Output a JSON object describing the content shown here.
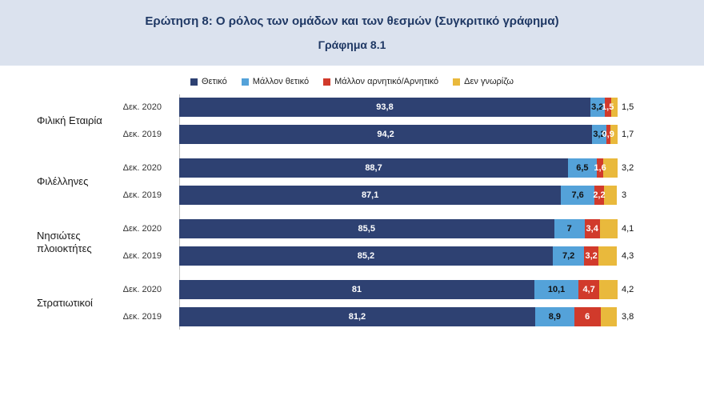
{
  "header": {
    "title": "Ερώτηση 8: Ο ρόλος των ομάδων και των θεσμών (Συγκριτικό γράφημα)",
    "subtitle": "Γράφημα 8.1"
  },
  "colors": {
    "positive": "#2e4172",
    "rather_positive": "#54a2d9",
    "negative": "#d13a2b",
    "dont_know": "#e9b93c",
    "header_bg": "#dbe2ee",
    "title_text": "#1f3864",
    "axis_line": "#bfbfbf"
  },
  "chart_data": {
    "type": "bar",
    "orientation": "horizontal-stacked",
    "title": "Γράφημα 8.1",
    "xlim": [
      0,
      100
    ],
    "legend_position": "top-center",
    "legend": [
      "Θετικό",
      "Μάλλον θετικό",
      "Μάλλον αρνητικό/Αρνητικό",
      "Δεν γνωρίζω"
    ],
    "series_keys": [
      "positive",
      "rather_positive",
      "negative",
      "dont_know"
    ],
    "groups": [
      {
        "label": "Φιλική Εταιρία",
        "rows": [
          {
            "label": "Δεκ. 2020",
            "values": [
              93.8,
              3.2,
              1.5,
              1.5
            ],
            "display": [
              "93,8",
              "3,2",
              "1,5",
              "1,5"
            ]
          },
          {
            "label": "Δεκ. 2019",
            "values": [
              94.2,
              3.2,
              0.9,
              1.7
            ],
            "display": [
              "94,2",
              "3,2",
              "0,9",
              "1,7"
            ]
          }
        ]
      },
      {
        "label": "Φιλέλληνες",
        "rows": [
          {
            "label": "Δεκ. 2020",
            "values": [
              88.7,
              6.5,
              1.6,
              3.2
            ],
            "display": [
              "88,7",
              "6,5",
              "1,6",
              "3,2"
            ]
          },
          {
            "label": "Δεκ. 2019",
            "values": [
              87.1,
              7.6,
              2.2,
              3.0
            ],
            "display": [
              "87,1",
              "7,6",
              "2,2",
              "3"
            ]
          }
        ]
      },
      {
        "label": "Νησιώτες πλοιοκτήτες",
        "rows": [
          {
            "label": "Δεκ. 2020",
            "values": [
              85.5,
              7.0,
              3.4,
              4.1
            ],
            "display": [
              "85,5",
              "7",
              "3,4",
              "4,1"
            ]
          },
          {
            "label": "Δεκ. 2019",
            "values": [
              85.2,
              7.2,
              3.2,
              4.3
            ],
            "display": [
              "85,2",
              "7,2",
              "3,2",
              "4,3"
            ]
          }
        ]
      },
      {
        "label": "Στρατιωτικοί",
        "rows": [
          {
            "label": "Δεκ. 2020",
            "values": [
              81.0,
              10.1,
              4.7,
              4.2
            ],
            "display": [
              "81",
              "10,1",
              "4,7",
              "4,2"
            ]
          },
          {
            "label": "Δεκ. 2019",
            "values": [
              81.2,
              8.9,
              6.0,
              3.8
            ],
            "display": [
              "81,2",
              "8,9",
              "6",
              "3,8"
            ]
          }
        ]
      }
    ]
  }
}
